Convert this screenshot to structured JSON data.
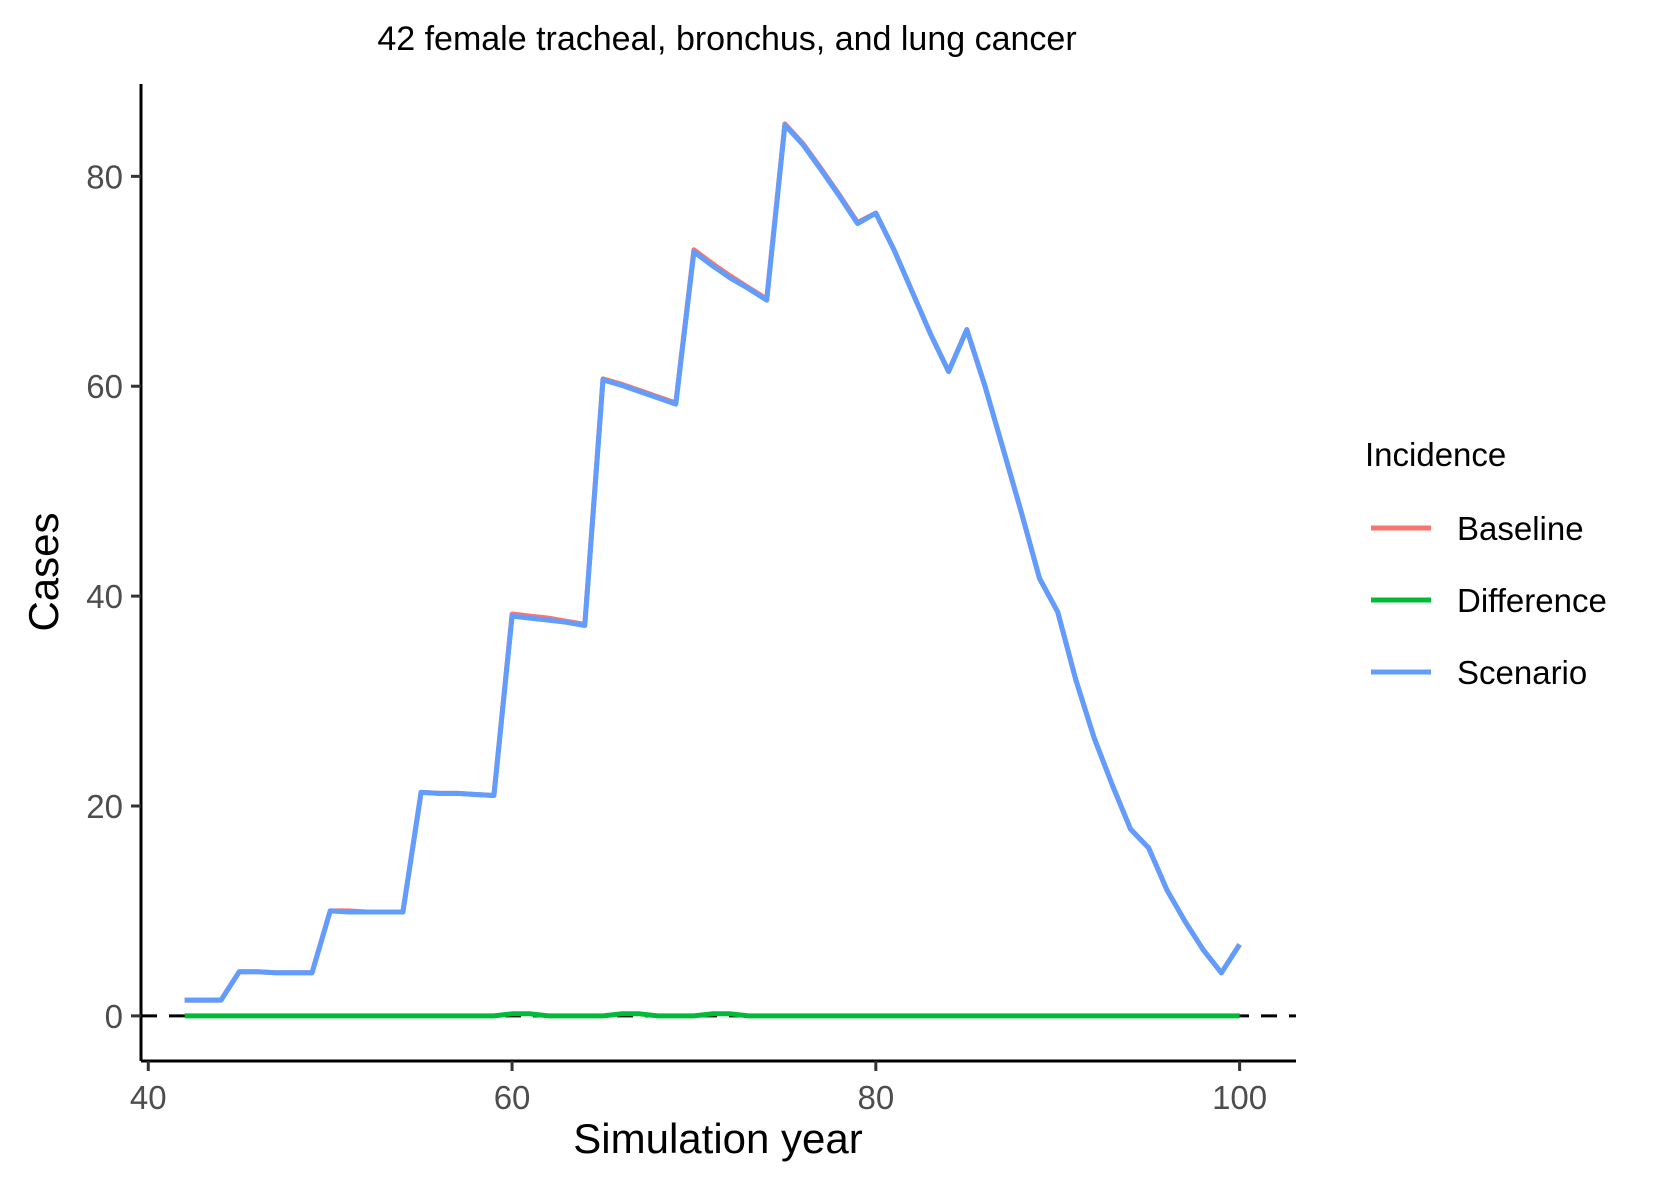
{
  "chart_data": {
    "type": "line",
    "title": "42 female tracheal, bronchus, and lung cancer",
    "xlabel": "Simulation year",
    "ylabel": "Cases",
    "xlim": [
      39.6,
      103.1
    ],
    "ylim": [
      -4.3,
      88.8
    ],
    "xticks": [
      40,
      60,
      80,
      100
    ],
    "yticks": [
      0,
      20,
      40,
      60,
      80
    ],
    "grid": false,
    "reference_line": {
      "y": 0,
      "style": "dashed"
    },
    "legend": {
      "title": "Incidence",
      "position": "right"
    },
    "x": [
      42,
      43,
      44,
      45,
      46,
      47,
      48,
      49,
      50,
      51,
      52,
      53,
      54,
      55,
      56,
      57,
      58,
      59,
      60,
      61,
      62,
      63,
      64,
      65,
      66,
      67,
      68,
      69,
      70,
      71,
      72,
      73,
      74,
      75,
      76,
      77,
      78,
      79,
      80,
      81,
      82,
      83,
      84,
      85,
      86,
      87,
      88,
      89,
      90,
      91,
      92,
      93,
      94,
      95,
      96,
      97,
      98,
      99,
      100
    ],
    "series": [
      {
        "name": "Baseline",
        "color": "#F8766D",
        "values": [
          1.5,
          1.5,
          1.5,
          4.2,
          4.2,
          4.1,
          4.1,
          4.1,
          10.0,
          10.0,
          9.9,
          9.9,
          9.9,
          21.3,
          21.2,
          21.2,
          21.1,
          21.0,
          38.3,
          38.1,
          37.9,
          37.6,
          37.3,
          60.7,
          60.2,
          59.6,
          59.0,
          58.4,
          73.0,
          71.7,
          70.5,
          69.4,
          68.3,
          85.0,
          83.1,
          80.7,
          78.2,
          75.6,
          76.5,
          73.0,
          69.0,
          65.0,
          61.4,
          65.4,
          60.0,
          54.0,
          48.0,
          41.7,
          38.5,
          32.0,
          26.5,
          22.0,
          17.8,
          16.0,
          12.0,
          9.0,
          6.3,
          4.1,
          6.8
        ]
      },
      {
        "name": "Difference",
        "color": "#00BA38",
        "values": [
          0,
          0,
          0,
          0,
          0,
          0,
          0,
          0,
          0,
          0,
          0,
          0,
          0,
          0,
          0,
          0,
          0,
          0,
          0.2,
          0.2,
          0,
          0,
          0,
          0,
          0.2,
          0.2,
          0,
          0,
          0,
          0.2,
          0.2,
          0,
          0,
          0,
          0,
          0,
          0,
          0,
          0,
          0,
          0,
          0,
          0,
          0,
          0,
          0,
          0,
          0,
          0,
          0,
          0,
          0,
          0,
          0,
          0,
          0,
          0,
          0,
          0
        ]
      },
      {
        "name": "Scenario",
        "color": "#619CFF",
        "values": [
          1.5,
          1.5,
          1.5,
          4.2,
          4.2,
          4.1,
          4.1,
          4.1,
          10.0,
          9.9,
          9.9,
          9.9,
          9.9,
          21.3,
          21.2,
          21.2,
          21.1,
          21.0,
          38.1,
          37.9,
          37.7,
          37.5,
          37.2,
          60.6,
          60.1,
          59.5,
          58.9,
          58.3,
          72.8,
          71.5,
          70.3,
          69.3,
          68.2,
          84.9,
          83.0,
          80.6,
          78.1,
          75.5,
          76.5,
          73.0,
          69.0,
          65.0,
          61.4,
          65.4,
          60.0,
          54.0,
          48.0,
          41.7,
          38.5,
          32.0,
          26.5,
          22.0,
          17.8,
          16.0,
          12.0,
          9.0,
          6.3,
          4.1,
          6.8
        ]
      }
    ]
  }
}
